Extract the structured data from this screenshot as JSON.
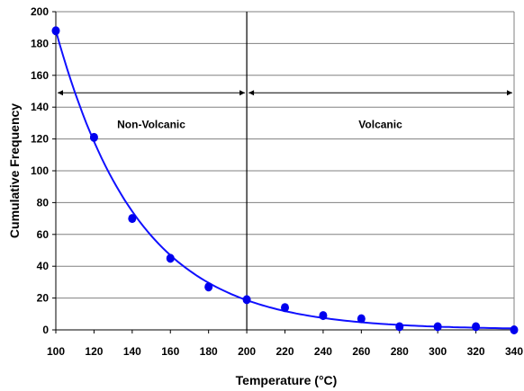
{
  "chart_data": {
    "type": "scatter",
    "title": "",
    "xlabel": "Temperature (°C)",
    "ylabel": "Cumulative Frequency",
    "xlim": [
      100,
      340
    ],
    "ylim": [
      0,
      200
    ],
    "x_ticks": [
      100,
      120,
      140,
      160,
      180,
      200,
      220,
      240,
      260,
      280,
      300,
      320,
      340
    ],
    "y_ticks": [
      0,
      20,
      40,
      60,
      80,
      100,
      120,
      140,
      160,
      180,
      200
    ],
    "grid": "horizontal",
    "colors": {
      "points": "#0000ee",
      "curve": "#1010ff",
      "grid": "#808080",
      "divider": "#000000"
    },
    "series": [
      {
        "x": [
          100,
          120,
          140,
          160,
          180,
          200,
          220,
          240,
          260,
          280,
          300,
          320,
          340
        ],
        "y": [
          188,
          121,
          70,
          45,
          27,
          19,
          14,
          9,
          7,
          2,
          2,
          2,
          0
        ]
      }
    ],
    "fit_curve": "exponential decay fit through points",
    "divider_x": 200,
    "regions": [
      {
        "label": "Non-Volcanic",
        "from": 100,
        "to": 200,
        "arrow_y": 149
      },
      {
        "label": "Volcanic",
        "from": 200,
        "to": 340,
        "arrow_y": 149
      }
    ]
  }
}
